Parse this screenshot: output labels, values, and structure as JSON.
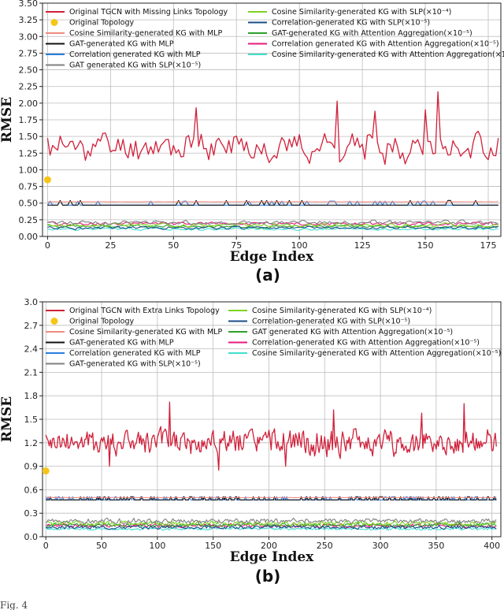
{
  "footer_text": "Fig. 4",
  "chart_data": [
    {
      "type": "line",
      "caption": "(a)",
      "xlabel": "Edge Index",
      "ylabel": "RMSE",
      "xlim": [
        -2,
        180
      ],
      "ylim": [
        0,
        3.5
      ],
      "xticks": [
        0,
        25,
        50,
        75,
        100,
        125,
        150,
        175
      ],
      "yticks": [
        0,
        0.25,
        0.5,
        0.75,
        1.0,
        1.25,
        1.5,
        1.75,
        2.0,
        2.25,
        2.5,
        2.75,
        3.0,
        3.25,
        3.5
      ],
      "ytick_labels": [
        "0.00",
        "0.25",
        "0.50",
        "0.75",
        "1.00",
        "1.25",
        "1.50",
        "1.75",
        "2.00",
        "2.25",
        "2.50",
        "2.75",
        "3.00",
        "3.25",
        "3.50"
      ],
      "grid": true,
      "n_points": 180,
      "series": [
        {
          "name": "Original TGCN with Missing Links Topology",
          "color": "#d0203a",
          "kind": "noisy",
          "base": 1.35,
          "amp": 0.28,
          "spikes": [
            [
              115,
              2.03
            ],
            [
              155,
              2.17
            ],
            [
              59,
              1.93
            ],
            [
              130,
              1.88
            ],
            [
              150,
              1.9
            ]
          ],
          "seed": 11
        },
        {
          "name": "Original Topology",
          "color": "#f5c518",
          "kind": "point",
          "x": 0,
          "y": 0.85
        },
        {
          "name": "Cosine Similarity-generated KG with MLP",
          "color": "#f08a80",
          "kind": "flat",
          "base": 0.52,
          "amp": 0.004,
          "seed": 3
        },
        {
          "name": "GAT-generated KG with MLP",
          "color": "#111111",
          "kind": "peaky",
          "base": 0.47,
          "peak": 0.54,
          "seed": 5,
          "rate": 0.12
        },
        {
          "name": "Correlation generated KG with MLP",
          "color": "#2b7de0",
          "kind": "peaky",
          "base": 0.47,
          "peak": 0.53,
          "seed": 7,
          "rate": 0.12
        },
        {
          "name": "GAT generated KG with SLP(×10⁻⁵)",
          "color": "#808080",
          "kind": "noisy",
          "base": 0.21,
          "amp": 0.04,
          "seed": 13
        },
        {
          "name": "Cosine Similarity-generated KG with SLP(×10⁻⁴)",
          "color": "#7ed321",
          "kind": "noisy",
          "base": 0.17,
          "amp": 0.035,
          "seed": 17
        },
        {
          "name": "Correlation-generated KG with SLP(×10⁻⁵)",
          "color": "#1a4e8a",
          "kind": "noisy",
          "base": 0.13,
          "amp": 0.03,
          "seed": 19
        },
        {
          "name": "GAT-generated KG with Attention Aggregation(×10⁻⁵)",
          "color": "#2ca02c",
          "kind": "noisy",
          "base": 0.15,
          "amp": 0.03,
          "seed": 23
        },
        {
          "name": "Correlation generated KG with Attention Aggregation(×10⁻⁵)",
          "color": "#e8197d",
          "kind": "noisy",
          "base": 0.19,
          "amp": 0.035,
          "seed": 29
        },
        {
          "name": "Cosine Similarity-generated KG with Attention Aggregation(×10⁻⁵)",
          "color": "#40e0d0",
          "kind": "noisy",
          "base": 0.11,
          "amp": 0.025,
          "seed": 31
        }
      ]
    },
    {
      "type": "line",
      "caption": "(b)",
      "xlabel": "Edge Index",
      "ylabel": "RMSE",
      "xlim": [
        -3,
        408
      ],
      "ylim": [
        0,
        3.0
      ],
      "xticks": [
        0,
        50,
        100,
        150,
        200,
        250,
        300,
        350,
        400
      ],
      "yticks": [
        0,
        0.3,
        0.6,
        0.9,
        1.2,
        1.5,
        1.8,
        2.1,
        2.4,
        2.7,
        3.0
      ],
      "ytick_labels": [
        "0.0",
        "0.3",
        "0.6",
        "0.9",
        "1.2",
        "1.5",
        "1.8",
        "2.1",
        "2.4",
        "2.7",
        "3.0"
      ],
      "grid": true,
      "n_points": 405,
      "series": [
        {
          "name": "Original TGCN with Extra Links Topology",
          "color": "#d0203a",
          "kind": "noisy",
          "base": 1.2,
          "amp": 0.2,
          "spikes": [
            [
              111,
              1.72
            ],
            [
              258,
              1.62
            ],
            [
              375,
              1.7
            ],
            [
              337,
              1.58
            ],
            [
              155,
              0.85
            ],
            [
              57,
              0.9
            ],
            [
              215,
              0.9
            ]
          ],
          "seed": 41
        },
        {
          "name": "Original Topology",
          "color": "#f5c518",
          "kind": "point",
          "x": 0,
          "y": 0.84
        },
        {
          "name": "Cosine Similarity-generated KG with MLP",
          "color": "#f08a80",
          "kind": "flat",
          "base": 0.5,
          "amp": 0.004,
          "seed": 43
        },
        {
          "name": "GAT-generated KG with MLP",
          "color": "#111111",
          "kind": "peaky",
          "base": 0.47,
          "peak": 0.51,
          "seed": 47,
          "rate": 0.18
        },
        {
          "name": "Correlation generated KG with MLP",
          "color": "#2b7de0",
          "kind": "peaky",
          "base": 0.47,
          "peak": 0.51,
          "seed": 53,
          "rate": 0.2
        },
        {
          "name": "GAT-generated KG with SLP(×10⁻⁵)",
          "color": "#808080",
          "kind": "noisy",
          "base": 0.2,
          "amp": 0.04,
          "seed": 59
        },
        {
          "name": "Cosine Similarity-generated KG with SLP(×10⁻⁴)",
          "color": "#7ed321",
          "kind": "noisy",
          "base": 0.17,
          "amp": 0.035,
          "seed": 61
        },
        {
          "name": "Correlation-generated KG with SLP(×10⁻⁵)",
          "color": "#1a4e8a",
          "kind": "noisy",
          "base": 0.12,
          "amp": 0.025,
          "seed": 67
        },
        {
          "name": "GAT generated KG with Attention Aggregation(×10⁻⁵)",
          "color": "#2ca02c",
          "kind": "noisy",
          "base": 0.15,
          "amp": 0.03,
          "seed": 71
        },
        {
          "name": "Correlation-generated KG with Attention Aggregation(×10⁻⁵)",
          "color": "#e8197d",
          "kind": "noisy",
          "base": 0.14,
          "amp": 0.03,
          "seed": 73
        },
        {
          "name": "Cosine Similarity-generated KG with Attention Aggregation(×10⁻⁵)",
          "color": "#40e0d0",
          "kind": "noisy",
          "base": 0.1,
          "amp": 0.02,
          "seed": 79
        }
      ]
    }
  ]
}
